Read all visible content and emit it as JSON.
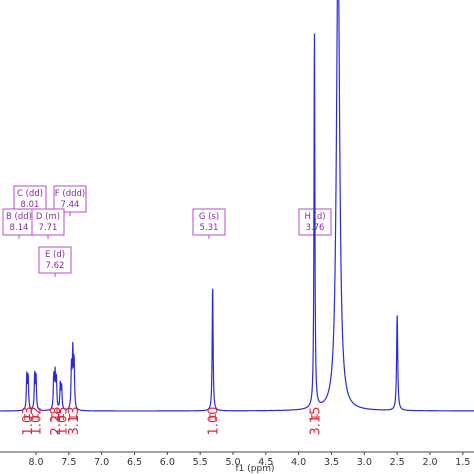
{
  "chart_data": {
    "type": "line",
    "xlabel": "f1 (ppm)",
    "xlim": [
      8.25,
      1.35
    ],
    "x_ticks": [
      8.0,
      7.5,
      7.0,
      6.5,
      6.0,
      5.5,
      5.0,
      4.5,
      4.0,
      3.5,
      3.0,
      2.5,
      2.0,
      1.5
    ],
    "x_tick_labels": [
      "8.0",
      "7.5",
      "7.0",
      "6.5",
      "6.0",
      "5.5",
      "5.0",
      "4.5",
      "4.0",
      "3.5",
      "3.0",
      "2.5",
      "2.0",
      "1.5"
    ],
    "y_range_relative": [
      0,
      1
    ],
    "signals": [
      {
        "shift": 8.14,
        "height": 0.075,
        "width": 0.008
      },
      {
        "shift": 8.12,
        "height": 0.07,
        "width": 0.008
      },
      {
        "shift": 8.02,
        "height": 0.075,
        "width": 0.008
      },
      {
        "shift": 8.0,
        "height": 0.07,
        "width": 0.008
      },
      {
        "shift": 7.73,
        "height": 0.07,
        "width": 0.008
      },
      {
        "shift": 7.71,
        "height": 0.075,
        "width": 0.008
      },
      {
        "shift": 7.69,
        "height": 0.065,
        "width": 0.008
      },
      {
        "shift": 7.63,
        "height": 0.055,
        "width": 0.008
      },
      {
        "shift": 7.61,
        "height": 0.05,
        "width": 0.008
      },
      {
        "shift": 7.46,
        "height": 0.09,
        "width": 0.008
      },
      {
        "shift": 7.44,
        "height": 0.12,
        "width": 0.008
      },
      {
        "shift": 7.42,
        "height": 0.1,
        "width": 0.008
      },
      {
        "shift": 5.31,
        "height": 0.27,
        "width": 0.008
      },
      {
        "shift": 3.76,
        "height": 0.81,
        "width": 0.008
      },
      {
        "shift": 3.4,
        "height": 1.0,
        "width": 0.03
      },
      {
        "shift": 2.5,
        "height": 0.205,
        "width": 0.01
      }
    ],
    "peak_labels": [
      {
        "id": "C",
        "mult": "C (dd)",
        "shift_text": "8.01",
        "ppm": 8.01
      },
      {
        "id": "F",
        "mult": "F (ddd)",
        "shift_text": "7.44",
        "ppm": 7.44
      },
      {
        "id": "B",
        "mult": "B (dd)",
        "shift_text": "8.14",
        "ppm": 8.14
      },
      {
        "id": "D",
        "mult": "D (m)",
        "shift_text": "7.71",
        "ppm": 7.71
      },
      {
        "id": "E",
        "mult": "E (d)",
        "shift_text": "7.62",
        "ppm": 7.62
      },
      {
        "id": "G",
        "mult": "G (s)",
        "shift_text": "5.31",
        "ppm": 5.31
      },
      {
        "id": "H",
        "mult": "H (d)",
        "shift_text": "3.76",
        "ppm": 3.76
      }
    ],
    "integrals": [
      {
        "label": "1.03",
        "from": 8.17,
        "to": 8.1
      },
      {
        "label": "1.02",
        "from": 8.05,
        "to": 7.97
      },
      {
        "label": "2.28",
        "from": 7.76,
        "to": 7.66
      },
      {
        "label": "1.05",
        "from": 7.65,
        "to": 7.58
      },
      {
        "label": "3.13",
        "from": 7.49,
        "to": 7.38
      },
      {
        "label": "1.00",
        "from": 5.35,
        "to": 5.27
      },
      {
        "label": "3.15",
        "from": 3.8,
        "to": 3.72
      }
    ],
    "colors": {
      "spectrum": "#2b2bd6",
      "peak_label": "#8a2aa5",
      "peak_box": "#b44cc9",
      "integral": "#e0233a"
    }
  }
}
